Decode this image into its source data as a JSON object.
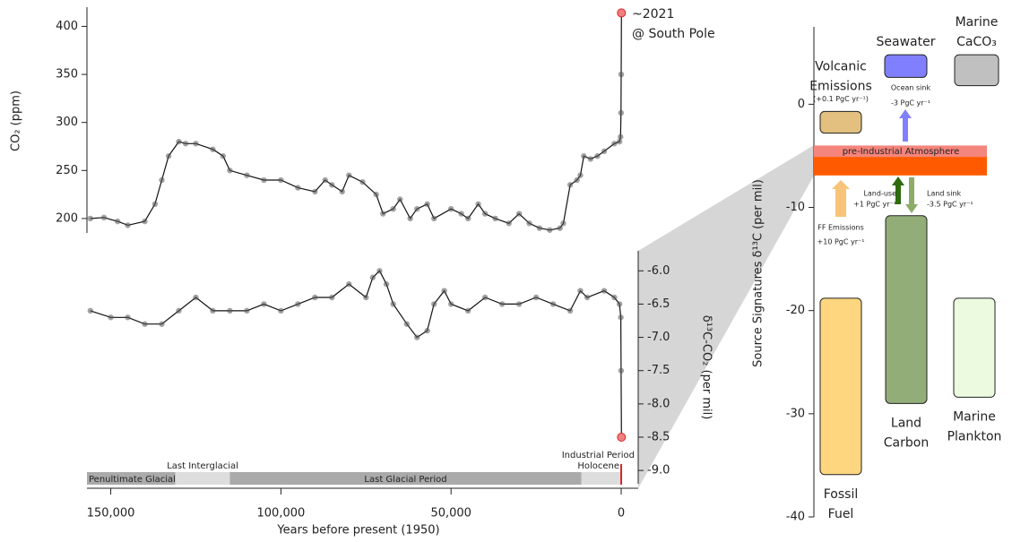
{
  "chart_data": [
    {
      "type": "scatter",
      "xlabel": "Years before present (1950)",
      "ylabel": "CO₂ (ppm)",
      "y2label": "δ¹³C-CO₂ (per mil)",
      "xlim": [
        157000,
        -5000
      ],
      "xticks": [
        {
          "value": 150000,
          "label": "150,000"
        },
        {
          "value": 100000,
          "label": "100,000"
        },
        {
          "value": 50000,
          "label": "50,000"
        },
        0
      ],
      "ylim": [
        185,
        420
      ],
      "yticks": [
        200,
        250,
        300,
        350,
        400
      ],
      "y2lim": [
        -9.2,
        -5.7
      ],
      "y2ticks": [
        {
          "value": -6,
          "label": "-6.0"
        },
        -6.5,
        {
          "value": -7,
          "label": "-7.0"
        },
        -7.5,
        {
          "value": -8,
          "label": "-8.0"
        },
        -8.5,
        {
          "value": -9,
          "label": "-9.0"
        }
      ],
      "series": [
        {
          "color": "#555555",
          "axis": "y",
          "x": [
            156000,
            152000,
            148000,
            145000,
            140000,
            137000,
            135000,
            133000,
            130000,
            128000,
            125000,
            120000,
            117000,
            115000,
            110000,
            105000,
            100000,
            95000,
            90000,
            87000,
            85000,
            82000,
            80000,
            76000,
            72000,
            70000,
            67000,
            65000,
            62000,
            60000,
            57000,
            55000,
            50000,
            47000,
            45000,
            42000,
            40000,
            37000,
            33000,
            30000,
            27000,
            24000,
            21000,
            18000,
            17000,
            15000,
            13000,
            12000,
            11000,
            9000,
            7000,
            5000,
            2000,
            500,
            200,
            50,
            0,
            -71
          ],
          "values": [
            200,
            201,
            197,
            193,
            197,
            215,
            240,
            265,
            280,
            278,
            278,
            272,
            265,
            250,
            245,
            240,
            240,
            232,
            228,
            240,
            235,
            228,
            245,
            238,
            225,
            205,
            210,
            220,
            200,
            210,
            215,
            200,
            210,
            205,
            200,
            215,
            205,
            200,
            195,
            205,
            195,
            190,
            188,
            190,
            195,
            235,
            240,
            245,
            265,
            262,
            265,
            270,
            278,
            280,
            285,
            310,
            350,
            414
          ]
        },
        {
          "color": "#555555",
          "axis": "y2",
          "x": [
            156000,
            150000,
            145000,
            140000,
            135000,
            130000,
            125000,
            120000,
            115000,
            110000,
            105000,
            100000,
            95000,
            90000,
            85000,
            80000,
            75000,
            73000,
            71000,
            69000,
            67000,
            63000,
            60000,
            57000,
            55000,
            52000,
            50000,
            45000,
            40000,
            35000,
            30000,
            25000,
            20000,
            15000,
            12000,
            10000,
            5000,
            2000,
            500,
            100,
            20,
            -71
          ],
          "values": [
            -6.6,
            -6.7,
            -6.7,
            -6.8,
            -6.8,
            -6.6,
            -6.4,
            -6.6,
            -6.6,
            -6.6,
            -6.5,
            -6.6,
            -6.5,
            -6.4,
            -6.4,
            -6.2,
            -6.4,
            -6.1,
            -6.0,
            -6.2,
            -6.5,
            -6.8,
            -7.0,
            -6.9,
            -6.5,
            -6.3,
            -6.5,
            -6.6,
            -6.4,
            -6.5,
            -6.5,
            -6.4,
            -6.5,
            -6.6,
            -6.3,
            -6.4,
            -6.3,
            -6.4,
            -6.5,
            -6.7,
            -7.5,
            -8.5
          ]
        }
      ],
      "end_marker_color": "#f08080",
      "annotations": [
        "~2021",
        "@ South Pole"
      ],
      "annotation_color": "#d62728",
      "periods": [
        {
          "label": "Penultimate Glacial",
          "start": 157000,
          "end": 131000,
          "color": "#aaaaaa"
        },
        {
          "label": "Last Interglacial",
          "start": 131000,
          "end": 115000,
          "color": "#dddddd"
        },
        {
          "label": "Last Glacial Period",
          "start": 115000,
          "end": 11700,
          "color": "#aaaaaa"
        },
        {
          "label": "Holocene",
          "start": 11700,
          "end": 0,
          "color": "#dddddd"
        }
      ],
      "industrial_label": "Industrial Period"
    },
    {
      "type": "range",
      "ylabel": "Source Signatures δ¹³C (per mil)",
      "ylim": [
        -40,
        7.5
      ],
      "yticks": [
        -40,
        -30,
        -20,
        -10,
        0
      ],
      "sources": [
        {
          "label": [
            "Volcanic",
            "Emissions"
          ],
          "note": "(+0.1 PgC yr⁻¹)",
          "range": [
            -2.8,
            -0.7
          ],
          "color": "#e3c07f"
        },
        {
          "label": [
            "Seawater"
          ],
          "range": [
            2.6,
            4.8
          ],
          "color": "#8080ff"
        },
        {
          "label": [
            "Marine",
            "CaCO₃"
          ],
          "range": [
            1.8,
            4.8
          ],
          "color": "#c0c0c0"
        },
        {
          "label": [
            "Fossil",
            "Fuel"
          ],
          "range": [
            -35.9,
            -18.8
          ],
          "color": "#fdd67f"
        },
        {
          "label": [
            "Land",
            "Carbon"
          ],
          "range": [
            -29.0,
            -10.8
          ],
          "color": "#93ad78"
        },
        {
          "label": [
            "Marine",
            "Plankton"
          ],
          "range": [
            -28.4,
            -18.8
          ],
          "color": "#ecfbe0"
        }
      ],
      "bands": [
        {
          "label": "pre-Industrial Atmosphere",
          "range": [
            -5.1,
            -4.0
          ],
          "color": "#f4857c"
        },
        {
          "label": null,
          "range": [
            -6.9,
            -5.1
          ],
          "color": "#ff5a00"
        }
      ],
      "fluxes": [
        {
          "label": "FF Emissions",
          "amount": "+10 PgC yr⁻¹",
          "color": "#f7c47a"
        },
        {
          "label": "Land-use",
          "amount": "+1 PgC yr⁻¹",
          "color": "#2e6b0e"
        },
        {
          "label": "Land sink",
          "amount": "-3.5 PgC yr⁻¹",
          "color": "#8eab6a"
        },
        {
          "label": "Ocean sink",
          "amount": "-3 PgC yr⁻¹",
          "color": "#8080ff"
        }
      ]
    }
  ]
}
